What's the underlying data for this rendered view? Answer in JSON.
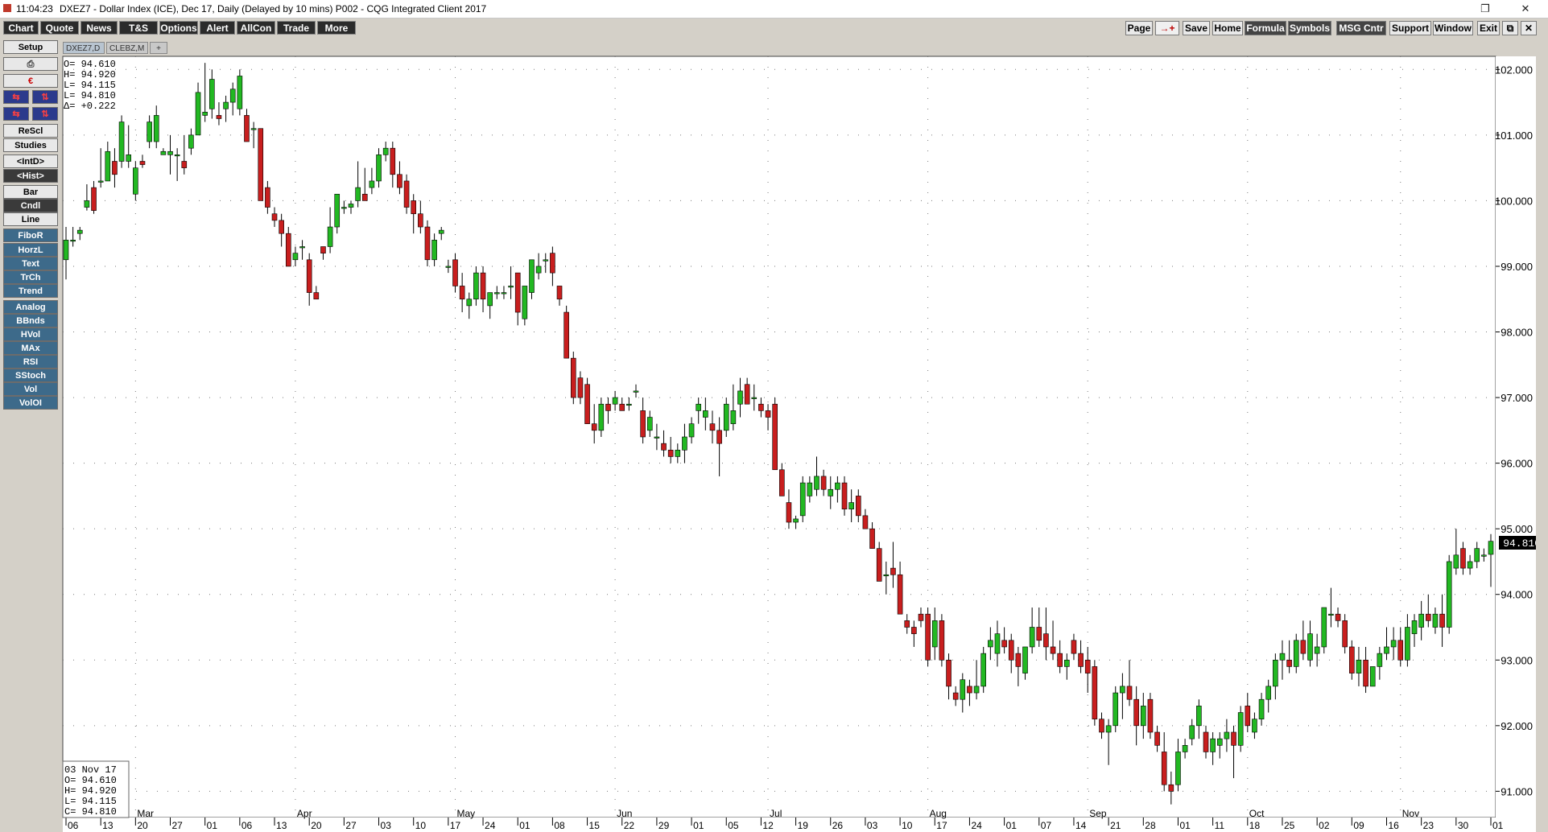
{
  "titlebar": {
    "time": "11:04:23",
    "title": "DXEZ7 - Dollar Index (ICE), Dec 17, Daily (Delayed by 10 mins)   P002 - CQG Integrated Client 2017",
    "restore_glyph": "❐",
    "close_glyph": "✕"
  },
  "menu": {
    "left": [
      "Chart",
      "Quote",
      "News",
      "T&S",
      "Options",
      "Alert",
      "AllCon",
      "Trade",
      "More"
    ],
    "right": [
      "Page",
      "→+",
      "Save",
      "Home",
      "Formula",
      "Symbols",
      "MSG Cntr",
      "Support",
      "Window",
      "Exit",
      "⧉",
      "✕"
    ]
  },
  "sidebar": {
    "top": [
      "Setup"
    ],
    "print_glyph": "⎙",
    "export_glyph": "€",
    "pair_glyphs": [
      "⇆",
      "⇅",
      "⇆",
      "⇅"
    ],
    "study_buttons": [
      "ReScl",
      "Studies",
      "<IntD>",
      "<Hist>"
    ],
    "chart_types": [
      "Bar",
      "Cndl",
      "Line"
    ],
    "tools": [
      "FiboR",
      "HorzL",
      "Text",
      "TrCh",
      "Trend"
    ],
    "indicators": [
      "Analog",
      "BBnds",
      "HVol",
      "MAx",
      "RSI",
      "SStoch",
      "Vol",
      "VolOI"
    ]
  },
  "tabs": [
    "DXEZ7,D",
    "CLEBZ,M",
    "+"
  ],
  "ohlc_top": {
    "o": "O=  94.610",
    "h": "H=  94.920",
    "l": "L=  94.115",
    "c": "L=  94.810",
    "d": "Δ= +0.222"
  },
  "ohlc_bottom": {
    "date": "03  Nov  17",
    "o": "O=   94.610",
    "h": "H=   94.920",
    "l": "L=   94.115",
    "c": "C=   94.810"
  },
  "colors": {
    "up": "#22b822",
    "down": "#c81e1e",
    "grid": "#7a7a7a",
    "price_box": "#000000"
  },
  "last_price": "94.810",
  "chart_data": {
    "type": "candlestick",
    "symbol": "DXEZ7",
    "ylim": [
      90.6,
      102.2
    ],
    "yticks": [
      "91.000",
      "92.000",
      "93.000",
      "94.000",
      "95.000",
      "96.000",
      "97.000",
      "98.000",
      "99.000",
      "100.000",
      "101.000",
      "102.000"
    ],
    "month_labels": [
      "Mar",
      "Apr",
      "May",
      "Jun",
      "Jul",
      "Aug",
      "Sep",
      "Oct",
      "Nov"
    ],
    "day_labels": [
      "06",
      "13",
      "20",
      "27",
      "01",
      "06",
      "13",
      "20",
      "27",
      "03",
      "10",
      "17",
      "24",
      "01",
      "08",
      "15",
      "22",
      "29",
      "01",
      "05",
      "12",
      "19",
      "26",
      "03",
      "10",
      "17",
      "24",
      "01",
      "07",
      "14",
      "21",
      "28",
      "01",
      "11",
      "18",
      "25",
      "02",
      "09",
      "16",
      "23",
      "30",
      "01"
    ],
    "candles": [
      [
        99.1,
        99.6,
        98.8,
        99.4
      ],
      [
        99.4,
        99.6,
        99.3,
        99.4
      ],
      [
        99.5,
        99.6,
        99.4,
        99.55
      ],
      [
        99.9,
        100.25,
        99.85,
        100.0
      ],
      [
        100.2,
        100.3,
        99.8,
        99.85
      ],
      [
        100.3,
        100.8,
        100.2,
        100.3
      ],
      [
        100.3,
        100.9,
        100.3,
        100.75
      ],
      [
        100.6,
        100.8,
        100.2,
        100.4
      ],
      [
        100.6,
        101.3,
        100.5,
        101.2
      ],
      [
        100.6,
        101.15,
        100.5,
        100.7
      ],
      [
        100.1,
        100.6,
        100.0,
        100.5
      ],
      [
        100.6,
        100.7,
        100.5,
        100.55
      ],
      [
        100.9,
        101.3,
        100.8,
        101.2
      ],
      [
        100.9,
        101.45,
        100.8,
        101.3
      ],
      [
        100.7,
        100.8,
        100.7,
        100.75
      ],
      [
        100.7,
        101.0,
        100.4,
        100.75
      ],
      [
        100.7,
        100.8,
        100.3,
        100.7
      ],
      [
        100.6,
        101.0,
        100.4,
        100.5
      ],
      [
        100.8,
        101.1,
        100.7,
        101.0
      ],
      [
        101.0,
        101.8,
        101.0,
        101.65
      ],
      [
        101.3,
        102.1,
        101.2,
        101.35
      ],
      [
        101.4,
        102.0,
        101.25,
        101.85
      ],
      [
        101.3,
        101.5,
        101.15,
        101.25
      ],
      [
        101.4,
        101.6,
        101.2,
        101.5
      ],
      [
        101.5,
        101.8,
        101.3,
        101.7
      ],
      [
        101.4,
        102.0,
        101.3,
        101.9
      ],
      [
        101.3,
        101.4,
        100.9,
        100.9
      ],
      [
        101.1,
        101.2,
        100.8,
        101.1
      ],
      [
        101.1,
        101.1,
        100.0,
        100.0
      ],
      [
        100.2,
        100.3,
        99.8,
        99.9
      ],
      [
        99.8,
        99.9,
        99.6,
        99.7
      ],
      [
        99.7,
        99.8,
        99.3,
        99.5
      ],
      [
        99.5,
        99.6,
        99.0,
        99.0
      ],
      [
        99.1,
        99.3,
        99.0,
        99.2
      ],
      [
        99.3,
        99.4,
        99.1,
        99.3
      ],
      [
        99.1,
        99.2,
        98.4,
        98.6
      ],
      [
        98.6,
        98.7,
        98.5,
        98.5
      ],
      [
        99.3,
        99.3,
        99.1,
        99.2
      ],
      [
        99.3,
        99.9,
        99.2,
        99.6
      ],
      [
        99.6,
        100.1,
        99.5,
        100.1
      ],
      [
        99.9,
        100.0,
        99.8,
        99.9
      ],
      [
        99.9,
        100.0,
        99.8,
        99.95
      ],
      [
        100.0,
        100.6,
        99.9,
        100.2
      ],
      [
        100.1,
        100.5,
        100.0,
        100.0
      ],
      [
        100.2,
        100.5,
        100.1,
        100.3
      ],
      [
        100.3,
        100.8,
        100.2,
        100.7
      ],
      [
        100.7,
        100.9,
        100.6,
        100.8
      ],
      [
        100.8,
        100.9,
        100.2,
        100.4
      ],
      [
        100.4,
        100.6,
        100.1,
        100.2
      ],
      [
        100.3,
        100.4,
        99.8,
        99.9
      ],
      [
        100.0,
        100.1,
        99.5,
        99.8
      ],
      [
        99.8,
        100.0,
        99.5,
        99.6
      ],
      [
        99.6,
        99.7,
        99.0,
        99.1
      ],
      [
        99.1,
        99.5,
        99.0,
        99.4
      ],
      [
        99.5,
        99.6,
        99.4,
        99.55
      ],
      [
        99.0,
        99.1,
        98.9,
        99.0
      ],
      [
        99.1,
        99.2,
        98.6,
        98.7
      ],
      [
        98.7,
        98.9,
        98.3,
        98.5
      ],
      [
        98.4,
        98.6,
        98.2,
        98.5
      ],
      [
        98.5,
        99.0,
        98.4,
        98.9
      ],
      [
        98.9,
        99.0,
        98.3,
        98.5
      ],
      [
        98.4,
        98.6,
        98.2,
        98.6
      ],
      [
        98.6,
        98.7,
        98.5,
        98.6
      ],
      [
        98.6,
        98.7,
        98.5,
        98.6
      ],
      [
        98.7,
        99.0,
        98.5,
        98.7
      ],
      [
        98.9,
        98.9,
        98.1,
        98.3
      ],
      [
        98.2,
        98.7,
        98.1,
        98.7
      ],
      [
        98.6,
        99.1,
        98.5,
        99.1
      ],
      [
        98.9,
        99.2,
        98.8,
        99.0
      ],
      [
        99.1,
        99.2,
        98.9,
        99.1
      ],
      [
        99.2,
        99.3,
        98.7,
        98.9
      ],
      [
        98.7,
        98.7,
        98.4,
        98.5
      ],
      [
        98.3,
        98.4,
        97.6,
        97.6
      ],
      [
        97.6,
        97.7,
        96.9,
        97.0
      ],
      [
        97.3,
        97.4,
        96.9,
        97.0
      ],
      [
        97.2,
        97.3,
        96.6,
        96.6
      ],
      [
        96.6,
        96.9,
        96.3,
        96.5
      ],
      [
        96.5,
        97.0,
        96.4,
        96.9
      ],
      [
        96.9,
        97.0,
        96.6,
        96.8
      ],
      [
        96.9,
        97.1,
        96.8,
        97.0
      ],
      [
        96.9,
        97.0,
        96.8,
        96.8
      ],
      [
        96.9,
        97.0,
        96.8,
        96.9
      ],
      [
        97.1,
        97.2,
        97.0,
        97.1
      ],
      [
        96.8,
        97.0,
        96.3,
        96.4
      ],
      [
        96.5,
        96.8,
        96.4,
        96.7
      ],
      [
        96.4,
        96.6,
        96.2,
        96.4
      ],
      [
        96.3,
        96.5,
        96.1,
        96.2
      ],
      [
        96.2,
        96.4,
        96.0,
        96.1
      ],
      [
        96.1,
        96.3,
        96.0,
        96.2
      ],
      [
        96.2,
        96.6,
        96.0,
        96.4
      ],
      [
        96.4,
        96.7,
        96.3,
        96.6
      ],
      [
        96.8,
        97.0,
        96.6,
        96.9
      ],
      [
        96.7,
        97.0,
        96.5,
        96.8
      ],
      [
        96.6,
        96.8,
        96.3,
        96.5
      ],
      [
        96.5,
        96.7,
        95.8,
        96.3
      ],
      [
        96.5,
        97.0,
        96.4,
        96.9
      ],
      [
        96.6,
        97.2,
        96.5,
        96.8
      ],
      [
        96.9,
        97.3,
        96.7,
        97.1
      ],
      [
        97.2,
        97.3,
        96.9,
        96.9
      ],
      [
        97.0,
        97.2,
        96.8,
        97.0
      ],
      [
        96.9,
        97.0,
        96.7,
        96.8
      ],
      [
        96.8,
        96.9,
        96.5,
        96.7
      ],
      [
        96.9,
        97.0,
        95.9,
        95.9
      ],
      [
        95.9,
        96.0,
        95.5,
        95.5
      ],
      [
        95.4,
        95.6,
        95.0,
        95.1
      ],
      [
        95.1,
        95.2,
        95.0,
        95.15
      ],
      [
        95.2,
        95.8,
        95.1,
        95.7
      ],
      [
        95.5,
        95.8,
        95.4,
        95.7
      ],
      [
        95.6,
        96.1,
        95.5,
        95.8
      ],
      [
        95.8,
        95.9,
        95.5,
        95.6
      ],
      [
        95.5,
        95.8,
        95.3,
        95.6
      ],
      [
        95.6,
        95.8,
        95.4,
        95.7
      ],
      [
        95.7,
        95.8,
        95.2,
        95.3
      ],
      [
        95.3,
        95.6,
        95.1,
        95.4
      ],
      [
        95.5,
        95.6,
        95.1,
        95.2
      ],
      [
        95.2,
        95.3,
        95.0,
        95.0
      ],
      [
        95.0,
        95.1,
        94.7,
        94.7
      ],
      [
        94.7,
        94.8,
        94.2,
        94.2
      ],
      [
        94.3,
        94.5,
        94.0,
        94.3
      ],
      [
        94.4,
        94.8,
        94.1,
        94.3
      ],
      [
        94.3,
        94.5,
        93.7,
        93.7
      ],
      [
        93.6,
        93.7,
        93.4,
        93.5
      ],
      [
        93.5,
        93.6,
        93.2,
        93.4
      ],
      [
        93.7,
        93.8,
        93.5,
        93.6
      ],
      [
        93.7,
        93.8,
        92.9,
        93.0
      ],
      [
        93.2,
        93.8,
        93.0,
        93.6
      ],
      [
        93.6,
        93.7,
        92.9,
        93.0
      ],
      [
        93.0,
        93.1,
        92.4,
        92.6
      ],
      [
        92.5,
        92.6,
        92.3,
        92.4
      ],
      [
        92.4,
        92.8,
        92.2,
        92.7
      ],
      [
        92.6,
        92.7,
        92.3,
        92.5
      ],
      [
        92.5,
        93.0,
        92.4,
        92.6
      ],
      [
        92.6,
        93.2,
        92.5,
        93.1
      ],
      [
        93.2,
        93.5,
        93.0,
        93.3
      ],
      [
        93.1,
        93.6,
        92.9,
        93.4
      ],
      [
        93.3,
        93.5,
        93.1,
        93.2
      ],
      [
        93.3,
        93.4,
        92.8,
        93.0
      ],
      [
        93.1,
        93.2,
        92.6,
        92.9
      ],
      [
        92.8,
        93.2,
        92.7,
        93.2
      ],
      [
        93.2,
        93.8,
        93.1,
        93.5
      ],
      [
        93.5,
        93.8,
        93.2,
        93.3
      ],
      [
        93.4,
        93.8,
        93.0,
        93.2
      ],
      [
        93.2,
        93.6,
        93.0,
        93.1
      ],
      [
        93.1,
        93.3,
        92.8,
        92.9
      ],
      [
        92.9,
        93.1,
        92.7,
        93.0
      ],
      [
        93.3,
        93.4,
        93.0,
        93.1
      ],
      [
        93.1,
        93.3,
        92.8,
        92.9
      ],
      [
        93.0,
        93.2,
        92.5,
        92.8
      ],
      [
        92.9,
        93.0,
        92.0,
        92.1
      ],
      [
        92.1,
        92.2,
        91.8,
        91.9
      ],
      [
        91.9,
        92.1,
        91.4,
        92.0
      ],
      [
        92.0,
        92.6,
        91.9,
        92.5
      ],
      [
        92.5,
        92.8,
        92.1,
        92.6
      ],
      [
        92.6,
        93.0,
        92.3,
        92.4
      ],
      [
        92.4,
        92.6,
        91.7,
        92.0
      ],
      [
        92.0,
        92.5,
        91.8,
        92.3
      ],
      [
        92.4,
        92.5,
        91.8,
        91.9
      ],
      [
        91.9,
        92.0,
        91.6,
        91.7
      ],
      [
        91.6,
        91.9,
        91.0,
        91.1
      ],
      [
        91.1,
        91.3,
        90.8,
        91.0
      ],
      [
        91.1,
        91.8,
        91.0,
        91.6
      ],
      [
        91.6,
        91.8,
        91.5,
        91.7
      ],
      [
        91.8,
        92.1,
        91.7,
        92.0
      ],
      [
        92.0,
        92.4,
        91.8,
        92.3
      ],
      [
        91.9,
        92.0,
        91.5,
        91.6
      ],
      [
        91.6,
        91.9,
        91.4,
        91.8
      ],
      [
        91.7,
        91.9,
        91.5,
        91.8
      ],
      [
        91.8,
        92.1,
        91.6,
        91.9
      ],
      [
        91.9,
        92.0,
        91.2,
        91.7
      ],
      [
        91.7,
        92.3,
        91.6,
        92.2
      ],
      [
        92.3,
        92.5,
        91.9,
        92.0
      ],
      [
        91.9,
        92.2,
        91.8,
        92.1
      ],
      [
        92.1,
        92.5,
        92.0,
        92.4
      ],
      [
        92.4,
        92.7,
        92.2,
        92.6
      ],
      [
        92.6,
        93.1,
        92.4,
        93.0
      ],
      [
        93.0,
        93.3,
        92.7,
        93.1
      ],
      [
        93.0,
        93.3,
        92.8,
        92.9
      ],
      [
        92.9,
        93.4,
        92.8,
        93.3
      ],
      [
        93.3,
        93.6,
        93.0,
        93.1
      ],
      [
        93.0,
        93.6,
        92.9,
        93.4
      ],
      [
        93.1,
        93.4,
        92.9,
        93.2
      ],
      [
        93.2,
        93.8,
        93.1,
        93.8
      ],
      [
        93.7,
        94.1,
        93.5,
        93.7
      ],
      [
        93.7,
        93.8,
        93.5,
        93.6
      ],
      [
        93.6,
        93.7,
        93.1,
        93.2
      ],
      [
        93.2,
        93.3,
        92.7,
        92.8
      ],
      [
        92.8,
        93.2,
        92.6,
        93.0
      ],
      [
        93.0,
        93.2,
        92.5,
        92.6
      ],
      [
        92.6,
        92.9,
        92.6,
        92.9
      ],
      [
        92.9,
        93.2,
        92.7,
        93.1
      ],
      [
        93.1,
        93.5,
        93.0,
        93.2
      ],
      [
        93.2,
        93.5,
        93.0,
        93.3
      ],
      [
        93.3,
        93.5,
        92.9,
        93.0
      ],
      [
        93.0,
        93.7,
        92.9,
        93.5
      ],
      [
        93.4,
        93.7,
        93.2,
        93.6
      ],
      [
        93.5,
        93.9,
        93.3,
        93.7
      ],
      [
        93.7,
        94.0,
        93.5,
        93.6
      ],
      [
        93.5,
        93.8,
        93.4,
        93.7
      ],
      [
        93.7,
        94.0,
        93.2,
        93.5
      ],
      [
        93.5,
        94.6,
        93.4,
        94.5
      ],
      [
        94.4,
        95.0,
        94.3,
        94.6
      ],
      [
        94.7,
        94.8,
        94.3,
        94.4
      ],
      [
        94.4,
        94.6,
        94.3,
        94.5
      ],
      [
        94.5,
        94.8,
        94.4,
        94.7
      ],
      [
        94.6,
        94.7,
        94.5,
        94.6
      ],
      [
        94.61,
        94.92,
        94.115,
        94.81
      ]
    ]
  }
}
